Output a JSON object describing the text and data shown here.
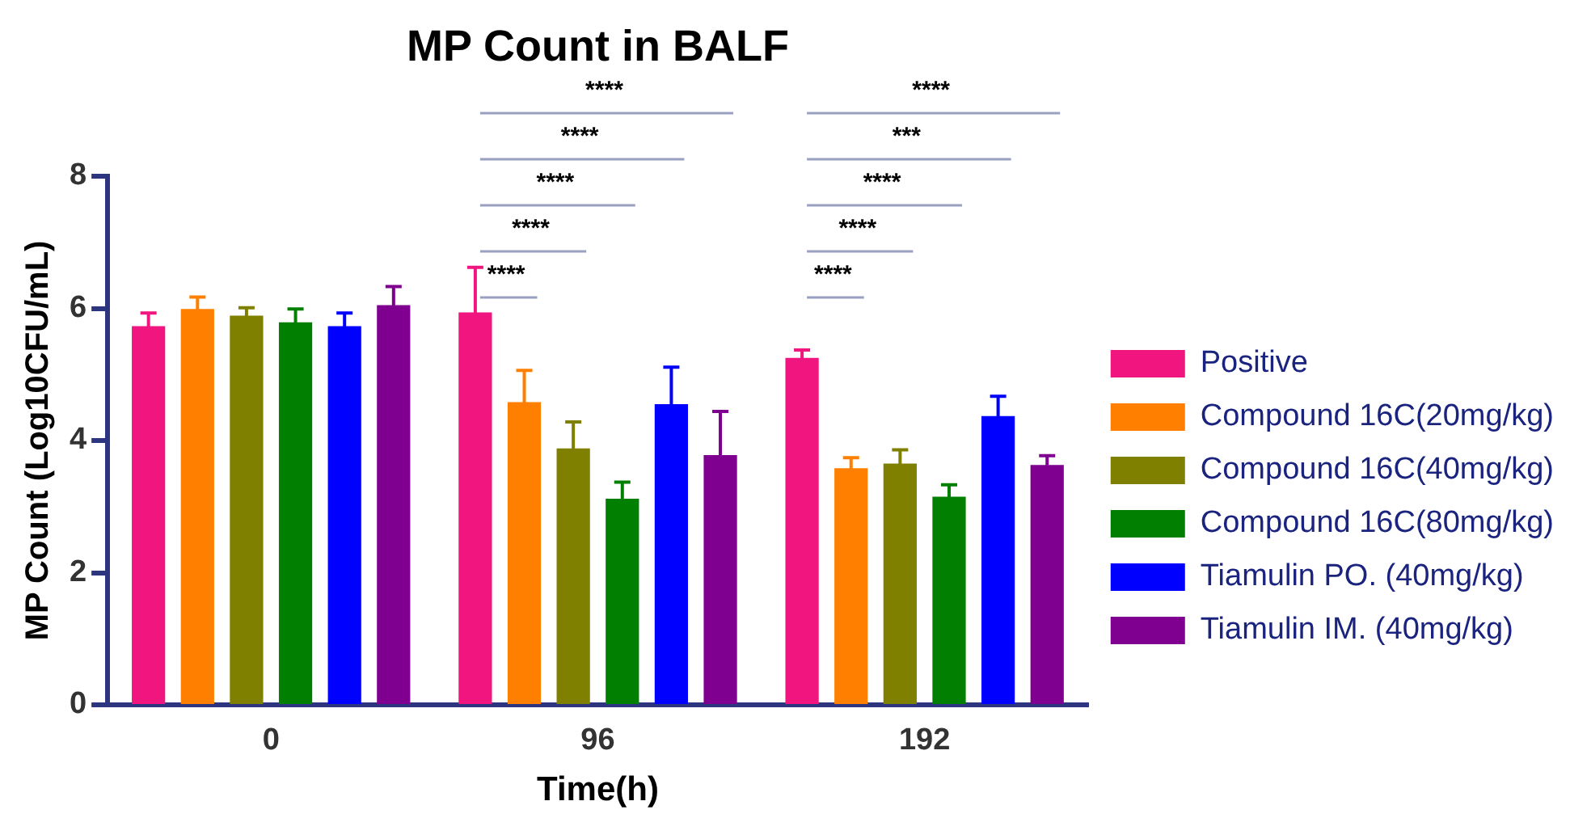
{
  "chart_data": {
    "type": "bar",
    "title": "MP Count in BALF",
    "xlabel": "Time(h)",
    "ylabel": "MP Count (Log10CFU/mL)",
    "categories": [
      "0",
      "96",
      "192"
    ],
    "ylim": [
      0,
      8
    ],
    "yticks": [
      0,
      2,
      4,
      6,
      8
    ],
    "grid": false,
    "legend": "right",
    "series": [
      {
        "name": "Positive",
        "color": "#f0157f",
        "values": [
          5.73,
          5.94,
          5.25
        ],
        "errors": [
          0.2,
          0.68,
          0.12
        ]
      },
      {
        "name": "Compound 16C(20mg/kg)",
        "color": "#ff7f00",
        "values": [
          5.99,
          4.58,
          3.58
        ],
        "errors": [
          0.18,
          0.48,
          0.16
        ]
      },
      {
        "name": "Compound 16C(40mg/kg)",
        "color": "#7f7f00",
        "values": [
          5.89,
          3.88,
          3.65
        ],
        "errors": [
          0.12,
          0.4,
          0.21
        ]
      },
      {
        "name": "Compound 16C(80mg/kg)",
        "color": "#007f00",
        "values": [
          5.79,
          3.12,
          3.15
        ],
        "errors": [
          0.2,
          0.25,
          0.18
        ]
      },
      {
        "name": "Tiamulin PO. (40mg/kg)",
        "color": "#0000ff",
        "values": [
          5.73,
          4.55,
          4.37
        ],
        "errors": [
          0.2,
          0.56,
          0.3
        ]
      },
      {
        "name": "Tiamulin IM. (40mg/kg)",
        "color": "#7f0090",
        "values": [
          6.05,
          3.78,
          3.63
        ],
        "errors": [
          0.28,
          0.66,
          0.14
        ]
      }
    ],
    "annotations": [
      "****",
      "****",
      "****",
      "****",
      "****",
      "****",
      "****",
      "****",
      "***",
      "****"
    ]
  }
}
